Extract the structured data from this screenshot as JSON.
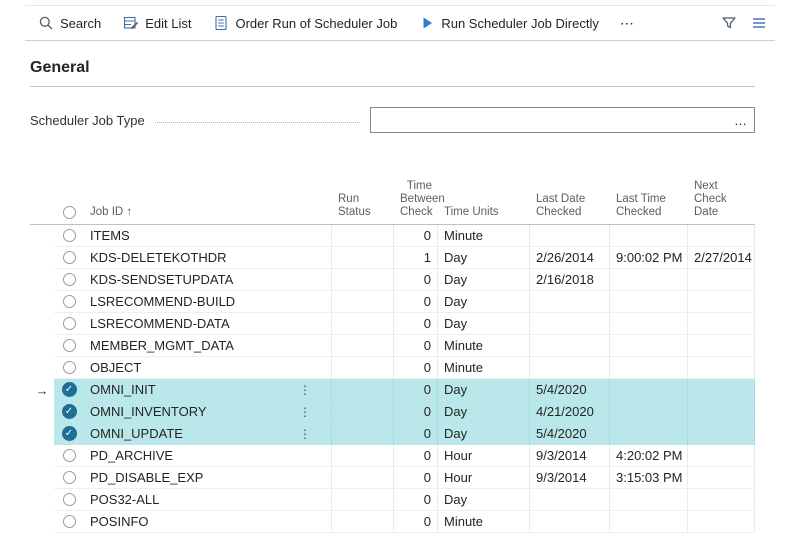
{
  "toolbar": {
    "search_label": "Search",
    "edit_list_label": "Edit List",
    "order_run_label": "Order Run of Scheduler Job",
    "run_directly_label": "Run Scheduler Job Directly",
    "more_glyph": "⋯"
  },
  "icons": {
    "search": "search-icon",
    "edit_list": "edit-list-icon",
    "order_run": "document-icon",
    "run_directly": "play-icon",
    "filter": "filter-icon",
    "views": "view-options-icon"
  },
  "section_title": "General",
  "field": {
    "label": "Scheduler Job Type",
    "value": "",
    "assist_glyph": "…"
  },
  "colors": {
    "selection_bg": "#b9e7ea",
    "check_fill": "#1e6f96",
    "accent_blue": "#2b7cd3"
  },
  "table": {
    "current_row_arrow": "→",
    "check_glyph": "✓",
    "menu_glyph": "⋮",
    "headers": {
      "job_id": "Job ID ↑",
      "run_status": "Run Status",
      "time_between": "Time\nBetween\nCheck",
      "time_units": "Time Units",
      "last_date": "Last Date\nChecked",
      "last_time": "Last Time\nChecked",
      "next_check": "Next Check\nDate"
    },
    "rows": [
      {
        "id": "ITEMS",
        "run_status": "",
        "between": "0",
        "units": "Minute",
        "last_date": "",
        "last_time": "",
        "next_check": "",
        "selected": false,
        "current": false,
        "menu": false
      },
      {
        "id": "KDS-DELETEKOTHDR",
        "run_status": "",
        "between": "1",
        "units": "Day",
        "last_date": "2/26/2014",
        "last_time": "9:00:02 PM",
        "next_check": "2/27/2014",
        "selected": false,
        "current": false,
        "menu": false
      },
      {
        "id": "KDS-SENDSETUPDATA",
        "run_status": "",
        "between": "0",
        "units": "Day",
        "last_date": "2/16/2018",
        "last_time": "",
        "next_check": "",
        "selected": false,
        "current": false,
        "menu": false
      },
      {
        "id": "LSRECOMMEND-BUILD",
        "run_status": "",
        "between": "0",
        "units": "Day",
        "last_date": "",
        "last_time": "",
        "next_check": "",
        "selected": false,
        "current": false,
        "menu": false
      },
      {
        "id": "LSRECOMMEND-DATA",
        "run_status": "",
        "between": "0",
        "units": "Day",
        "last_date": "",
        "last_time": "",
        "next_check": "",
        "selected": false,
        "current": false,
        "menu": false
      },
      {
        "id": "MEMBER_MGMT_DATA",
        "run_status": "",
        "between": "0",
        "units": "Minute",
        "last_date": "",
        "last_time": "",
        "next_check": "",
        "selected": false,
        "current": false,
        "menu": false
      },
      {
        "id": "OBJECT",
        "run_status": "",
        "between": "0",
        "units": "Minute",
        "last_date": "",
        "last_time": "",
        "next_check": "",
        "selected": false,
        "current": false,
        "menu": false
      },
      {
        "id": "OMNI_INIT",
        "run_status": "",
        "between": "0",
        "units": "Day",
        "last_date": "5/4/2020",
        "last_time": "",
        "next_check": "",
        "selected": true,
        "current": true,
        "menu": true
      },
      {
        "id": "OMNI_INVENTORY",
        "run_status": "",
        "between": "0",
        "units": "Day",
        "last_date": "4/21/2020",
        "last_time": "",
        "next_check": "",
        "selected": true,
        "current": false,
        "menu": true
      },
      {
        "id": "OMNI_UPDATE",
        "run_status": "",
        "between": "0",
        "units": "Day",
        "last_date": "5/4/2020",
        "last_time": "",
        "next_check": "",
        "selected": true,
        "current": false,
        "menu": true
      },
      {
        "id": "PD_ARCHIVE",
        "run_status": "",
        "between": "0",
        "units": "Hour",
        "last_date": "9/3/2014",
        "last_time": "4:20:02 PM",
        "next_check": "",
        "selected": false,
        "current": false,
        "menu": false
      },
      {
        "id": "PD_DISABLE_EXP",
        "run_status": "",
        "between": "0",
        "units": "Hour",
        "last_date": "9/3/2014",
        "last_time": "3:15:03 PM",
        "next_check": "",
        "selected": false,
        "current": false,
        "menu": false
      },
      {
        "id": "POS32-ALL",
        "run_status": "",
        "between": "0",
        "units": "Day",
        "last_date": "",
        "last_time": "",
        "next_check": "",
        "selected": false,
        "current": false,
        "menu": false
      },
      {
        "id": "POSINFO",
        "run_status": "",
        "between": "0",
        "units": "Minute",
        "last_date": "",
        "last_time": "",
        "next_check": "",
        "selected": false,
        "current": false,
        "menu": false
      }
    ]
  }
}
